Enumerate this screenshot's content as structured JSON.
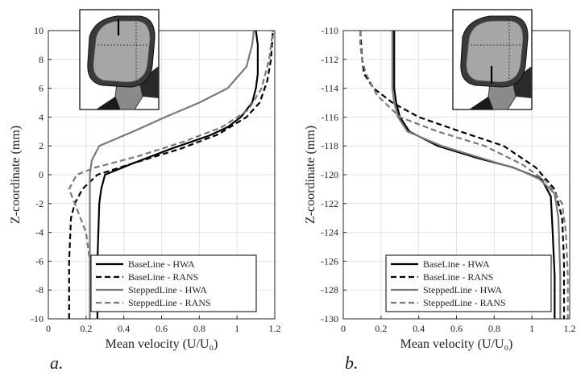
{
  "colors": {
    "baseline": "#000000",
    "stepped": "#7a7a7a",
    "grid": "#e2e2e2",
    "axis": "#262626"
  },
  "chart_data": [
    {
      "type": "line",
      "panel_label": "a.",
      "xlabel": "Mean velocity (U/U₀)",
      "ylabel": "Z-coordinate (mm)",
      "xlim": [
        0,
        1.2
      ],
      "ylim": [
        -10,
        10
      ],
      "xticks": [
        "0",
        "0.2",
        "0.4",
        "0.6",
        "0.8",
        "1",
        "1.2"
      ],
      "yticks": [
        "-10",
        "-8",
        "-6",
        "-4",
        "-2",
        "0",
        "2",
        "4",
        "6",
        "8",
        "10"
      ],
      "grid": true,
      "legend_position": "bottom-right",
      "inset": "mirror-geometry-top-probe",
      "series": [
        {
          "name": "BaseLine - HWA",
          "color": "#000000",
          "dash": "solid",
          "x": [
            0.26,
            0.26,
            0.27,
            0.28,
            0.3,
            0.45,
            0.65,
            0.85,
            0.95,
            1.02,
            1.08,
            1.1,
            1.11,
            1.11,
            1.1
          ],
          "y": [
            -10,
            -6,
            -2,
            -1,
            0,
            0.8,
            1.8,
            2.7,
            3.3,
            4.0,
            5.0,
            6.0,
            7.0,
            9.0,
            10
          ]
        },
        {
          "name": "BaseLine - RANS",
          "color": "#000000",
          "dash": "dashed",
          "x": [
            0.11,
            0.11,
            0.12,
            0.14,
            0.18,
            0.26,
            0.45,
            0.7,
            0.9,
            1.05,
            1.12,
            1.16,
            1.18,
            1.19
          ],
          "y": [
            -10,
            -6,
            -3,
            -2,
            -1,
            0,
            0.8,
            1.8,
            2.8,
            4.0,
            5.0,
            6.5,
            8.0,
            10
          ]
        },
        {
          "name": "SteppedLine - HWA",
          "color": "#7a7a7a",
          "dash": "solid",
          "x": [
            0.22,
            0.22,
            0.22,
            0.22,
            0.23,
            0.27,
            0.45,
            0.62,
            0.8,
            0.95,
            1.05,
            1.08,
            1.09
          ],
          "y": [
            -10,
            -4,
            -1,
            0,
            1.0,
            2.0,
            3.0,
            4.0,
            5.0,
            6.0,
            7.5,
            9.0,
            10
          ]
        },
        {
          "name": "SteppedLine - RANS",
          "color": "#7a7a7a",
          "dash": "dashed",
          "x": [
            0.22,
            0.22,
            0.2,
            0.17,
            0.14,
            0.11,
            0.15,
            0.25,
            0.48,
            0.72,
            0.92,
            1.06,
            1.13,
            1.17,
            1.19
          ],
          "y": [
            -10,
            -6,
            -4,
            -3,
            -2,
            -1,
            0,
            0.5,
            1.3,
            2.3,
            3.3,
            4.5,
            6.0,
            8.0,
            10
          ]
        }
      ]
    },
    {
      "type": "line",
      "panel_label": "b.",
      "xlabel": "Mean velocity (U/U₀)",
      "ylabel": "Z-coordinate (mm)",
      "xlim": [
        0,
        1.2
      ],
      "ylim": [
        -130,
        -110
      ],
      "xticks": [
        "0",
        "0.2",
        "0.4",
        "0.6",
        "0.8",
        "1",
        "1.2"
      ],
      "yticks": [
        "-130",
        "-128",
        "-126",
        "-124",
        "-122",
        "-120",
        "-118",
        "-116",
        "-114",
        "-112",
        "-110"
      ],
      "grid": true,
      "legend_position": "bottom-right",
      "inset": "mirror-geometry-bottom-probe",
      "series": [
        {
          "name": "BaseLine - HWA",
          "color": "#000000",
          "dash": "solid",
          "x": [
            0.27,
            0.27,
            0.27,
            0.28,
            0.3,
            0.35,
            0.5,
            0.7,
            0.9,
            1.05,
            1.1,
            1.11,
            1.12,
            1.12
          ],
          "y": [
            -110,
            -112,
            -114,
            -115,
            -116,
            -117,
            -118,
            -118.8,
            -119.5,
            -120.3,
            -121.5,
            -124,
            -127,
            -130
          ]
        },
        {
          "name": "BaseLine - RANS",
          "color": "#000000",
          "dash": "dashed",
          "x": [
            0.09,
            0.1,
            0.11,
            0.16,
            0.26,
            0.4,
            0.62,
            0.85,
            1.02,
            1.12,
            1.16,
            1.17,
            1.17
          ],
          "y": [
            -110,
            -112,
            -113,
            -114,
            -115,
            -116,
            -117,
            -118,
            -119.5,
            -121,
            -123,
            -126,
            -130
          ]
        },
        {
          "name": "SteppedLine - HWA",
          "color": "#7a7a7a",
          "dash": "solid",
          "x": [
            0.26,
            0.26,
            0.26,
            0.27,
            0.29,
            0.34,
            0.52,
            0.72,
            0.92,
            1.04,
            1.12,
            1.14,
            1.15,
            1.15
          ],
          "y": [
            -110,
            -112,
            -114,
            -115,
            -116,
            -117,
            -118,
            -118.8,
            -119.6,
            -120.3,
            -121.3,
            -123,
            -127,
            -130
          ]
        },
        {
          "name": "SteppedLine - RANS",
          "color": "#7a7a7a",
          "dash": "dashed",
          "x": [
            0.09,
            0.09,
            0.1,
            0.12,
            0.18,
            0.3,
            0.5,
            0.75,
            0.95,
            1.08,
            1.16,
            1.18,
            1.19,
            1.19
          ],
          "y": [
            -110,
            -111,
            -112,
            -113,
            -114.5,
            -116,
            -117,
            -118,
            -119.3,
            -120.5,
            -122,
            -124,
            -127,
            -130
          ]
        }
      ]
    }
  ]
}
